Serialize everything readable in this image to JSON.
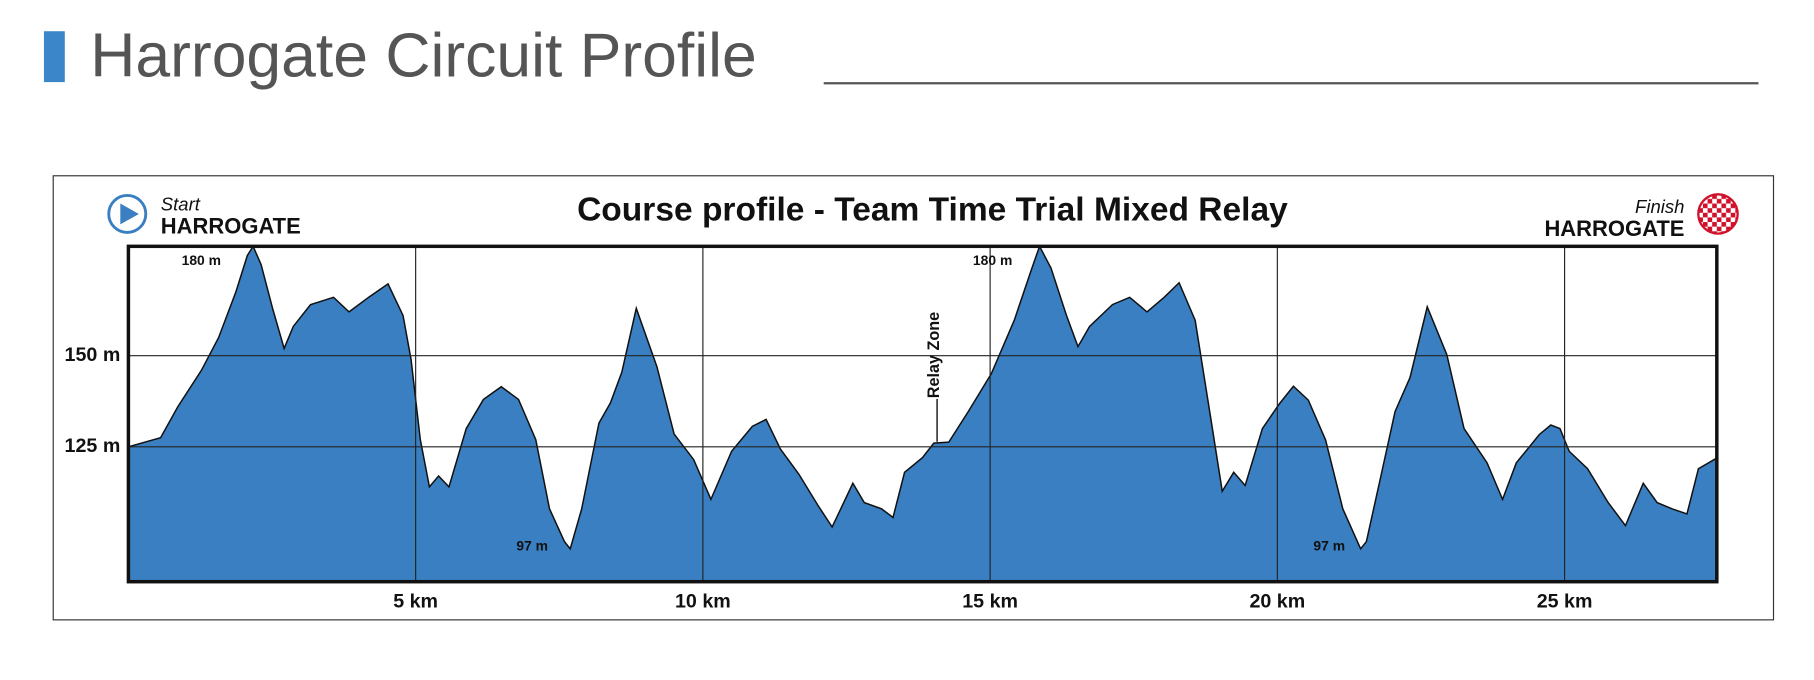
{
  "header": {
    "title": "Harrogate Circuit Profile"
  },
  "chart_data": {
    "type": "area",
    "title": "Course profile - Team Time Trial Mixed Relay",
    "start_label": "Start",
    "start_place": "HARROGATE",
    "finish_label": "Finish",
    "finish_place": "HARROGATE",
    "annotations": [
      "180 m",
      "97 m",
      "180 m",
      "97 m",
      "Relay Zone"
    ],
    "color": "#3a7fc1",
    "x": [
      0,
      0.36,
      0.56,
      0.86,
      1.27,
      1.57,
      1.87,
      2.07,
      2.17,
      2.31,
      2.51,
      2.71,
      2.87,
      3.17,
      3.57,
      3.84,
      4.18,
      4.52,
      4.78,
      4.92,
      5.08,
      5.24,
      5.4,
      5.58,
      5.88,
      6.18,
      6.49,
      6.79,
      7.09,
      7.33,
      7.59,
      7.69,
      7.89,
      8.19,
      8.39,
      8.59,
      8.84,
      9.2,
      9.5,
      9.84,
      10.14,
      10.5,
      10.86,
      11.1,
      11.35,
      11.67,
      12.0,
      12.25,
      12.61,
      12.81,
      13.11,
      13.31,
      13.51,
      13.82,
      14.02,
      14.28,
      14.62,
      15.02,
      15.42,
      15.72,
      15.86,
      16.06,
      16.33,
      16.53,
      16.73,
      17.13,
      17.43,
      17.73,
      18.03,
      18.29,
      18.57,
      18.84,
      19.04,
      19.24,
      19.44,
      19.74,
      20.04,
      20.28,
      20.54,
      20.84,
      21.14,
      21.45,
      21.55,
      21.81,
      22.05,
      22.31,
      22.61,
      22.95,
      23.25,
      23.65,
      23.92,
      24.16,
      24.56,
      24.76,
      24.92,
      25.08,
      25.4,
      25.76,
      26.06,
      26.37,
      26.61,
      26.87,
      27.13,
      27.33,
      27.65
    ],
    "values": [
      125,
      126.6,
      127.5,
      136,
      146,
      155,
      167.5,
      177.5,
      180,
      175,
      163,
      152,
      158,
      164,
      166,
      162,
      166,
      169.7,
      161,
      149,
      127,
      114,
      117,
      114,
      130,
      138,
      141.5,
      138,
      127,
      108,
      99,
      97,
      108,
      131.5,
      137,
      145.5,
      163,
      147,
      128.5,
      121.5,
      110.6,
      123.8,
      130.6,
      132.5,
      124.4,
      117.5,
      109,
      103,
      115,
      109.7,
      108,
      105.6,
      118,
      122,
      126,
      126.3,
      134.7,
      145,
      159.7,
      173.7,
      180,
      174,
      161,
      152.5,
      158,
      164,
      166,
      162,
      166,
      170,
      159.7,
      133,
      112.8,
      118,
      114.4,
      130,
      136.9,
      141.6,
      137.8,
      126.9,
      108,
      97,
      99,
      117.5,
      134.7,
      144,
      163.4,
      150.3,
      130,
      120.6,
      110.6,
      120.6,
      128.4,
      131,
      130,
      123.8,
      119,
      109.7,
      103.4,
      115,
      109.7,
      108,
      106.6,
      119,
      121.9
    ],
    "xlim": [
      0,
      27.65
    ],
    "ylim": [
      88,
      180
    ],
    "xticks": [
      {
        "value": 5,
        "label": "5 km"
      },
      {
        "value": 10,
        "label": "10 km"
      },
      {
        "value": 15,
        "label": "15 km"
      },
      {
        "value": 20,
        "label": "20 km"
      },
      {
        "value": 25,
        "label": "25 km"
      }
    ],
    "yticks": [
      {
        "value": 125,
        "label": "125 m"
      },
      {
        "value": 150,
        "label": "150 m"
      }
    ],
    "grid": true
  }
}
